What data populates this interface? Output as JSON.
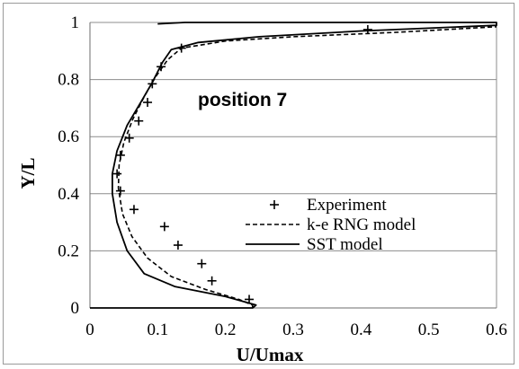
{
  "chart_data": {
    "type": "line",
    "title": "",
    "xlabel": "U/Umax",
    "ylabel": "Y/L",
    "xlim": [
      0,
      0.6
    ],
    "ylim": [
      0,
      1
    ],
    "x_ticks": [
      "0",
      "0.1",
      "0.2",
      "0.3",
      "0.4",
      "0.5",
      "0.6"
    ],
    "y_ticks": [
      "0",
      "0.2",
      "0.4",
      "0.6",
      "0.8",
      "1"
    ],
    "grid": "horizontal",
    "legend_position": "center-right",
    "annotation": "position 7",
    "series": [
      {
        "name": "Experiment",
        "style": "plus-markers",
        "color": "#000000",
        "points": [
          [
            0.235,
            0.03
          ],
          [
            0.18,
            0.095
          ],
          [
            0.165,
            0.155
          ],
          [
            0.13,
            0.22
          ],
          [
            0.11,
            0.285
          ],
          [
            0.065,
            0.345
          ],
          [
            0.045,
            0.41
          ],
          [
            0.04,
            0.47
          ],
          [
            0.045,
            0.535
          ],
          [
            0.058,
            0.595
          ],
          [
            0.072,
            0.655
          ],
          [
            0.085,
            0.72
          ],
          [
            0.092,
            0.785
          ],
          [
            0.105,
            0.845
          ],
          [
            0.135,
            0.91
          ],
          [
            0.41,
            0.975
          ]
        ]
      },
      {
        "name": "k-e RNG model",
        "style": "dashed",
        "color": "#000000",
        "points": [
          [
            0.24,
            0.0
          ],
          [
            0.24,
            0.01
          ],
          [
            0.22,
            0.03
          ],
          [
            0.17,
            0.065
          ],
          [
            0.12,
            0.11
          ],
          [
            0.085,
            0.175
          ],
          [
            0.062,
            0.25
          ],
          [
            0.048,
            0.33
          ],
          [
            0.042,
            0.42
          ],
          [
            0.043,
            0.5
          ],
          [
            0.05,
            0.58
          ],
          [
            0.063,
            0.66
          ],
          [
            0.08,
            0.74
          ],
          [
            0.097,
            0.81
          ],
          [
            0.115,
            0.87
          ],
          [
            0.135,
            0.91
          ],
          [
            0.2,
            0.935
          ],
          [
            0.3,
            0.95
          ],
          [
            0.45,
            0.965
          ],
          [
            0.6,
            0.985
          ]
        ]
      },
      {
        "name": "SST model",
        "style": "solid",
        "color": "#000000",
        "points": [
          [
            0.0,
            0.0
          ],
          [
            0.24,
            0.0
          ],
          [
            0.245,
            0.01
          ],
          [
            0.2,
            0.04
          ],
          [
            0.125,
            0.075
          ],
          [
            0.08,
            0.12
          ],
          [
            0.055,
            0.2
          ],
          [
            0.04,
            0.3
          ],
          [
            0.033,
            0.4
          ],
          [
            0.033,
            0.47
          ],
          [
            0.04,
            0.55
          ],
          [
            0.055,
            0.64
          ],
          [
            0.075,
            0.72
          ],
          [
            0.092,
            0.79
          ],
          [
            0.107,
            0.86
          ],
          [
            0.12,
            0.905
          ],
          [
            0.16,
            0.93
          ],
          [
            0.25,
            0.95
          ],
          [
            0.4,
            0.97
          ],
          [
            0.55,
            0.985
          ],
          [
            0.6,
            0.99
          ],
          [
            0.6,
            1.0
          ],
          [
            0.14,
            1.0
          ],
          [
            0.1,
            0.995
          ]
        ]
      }
    ]
  }
}
